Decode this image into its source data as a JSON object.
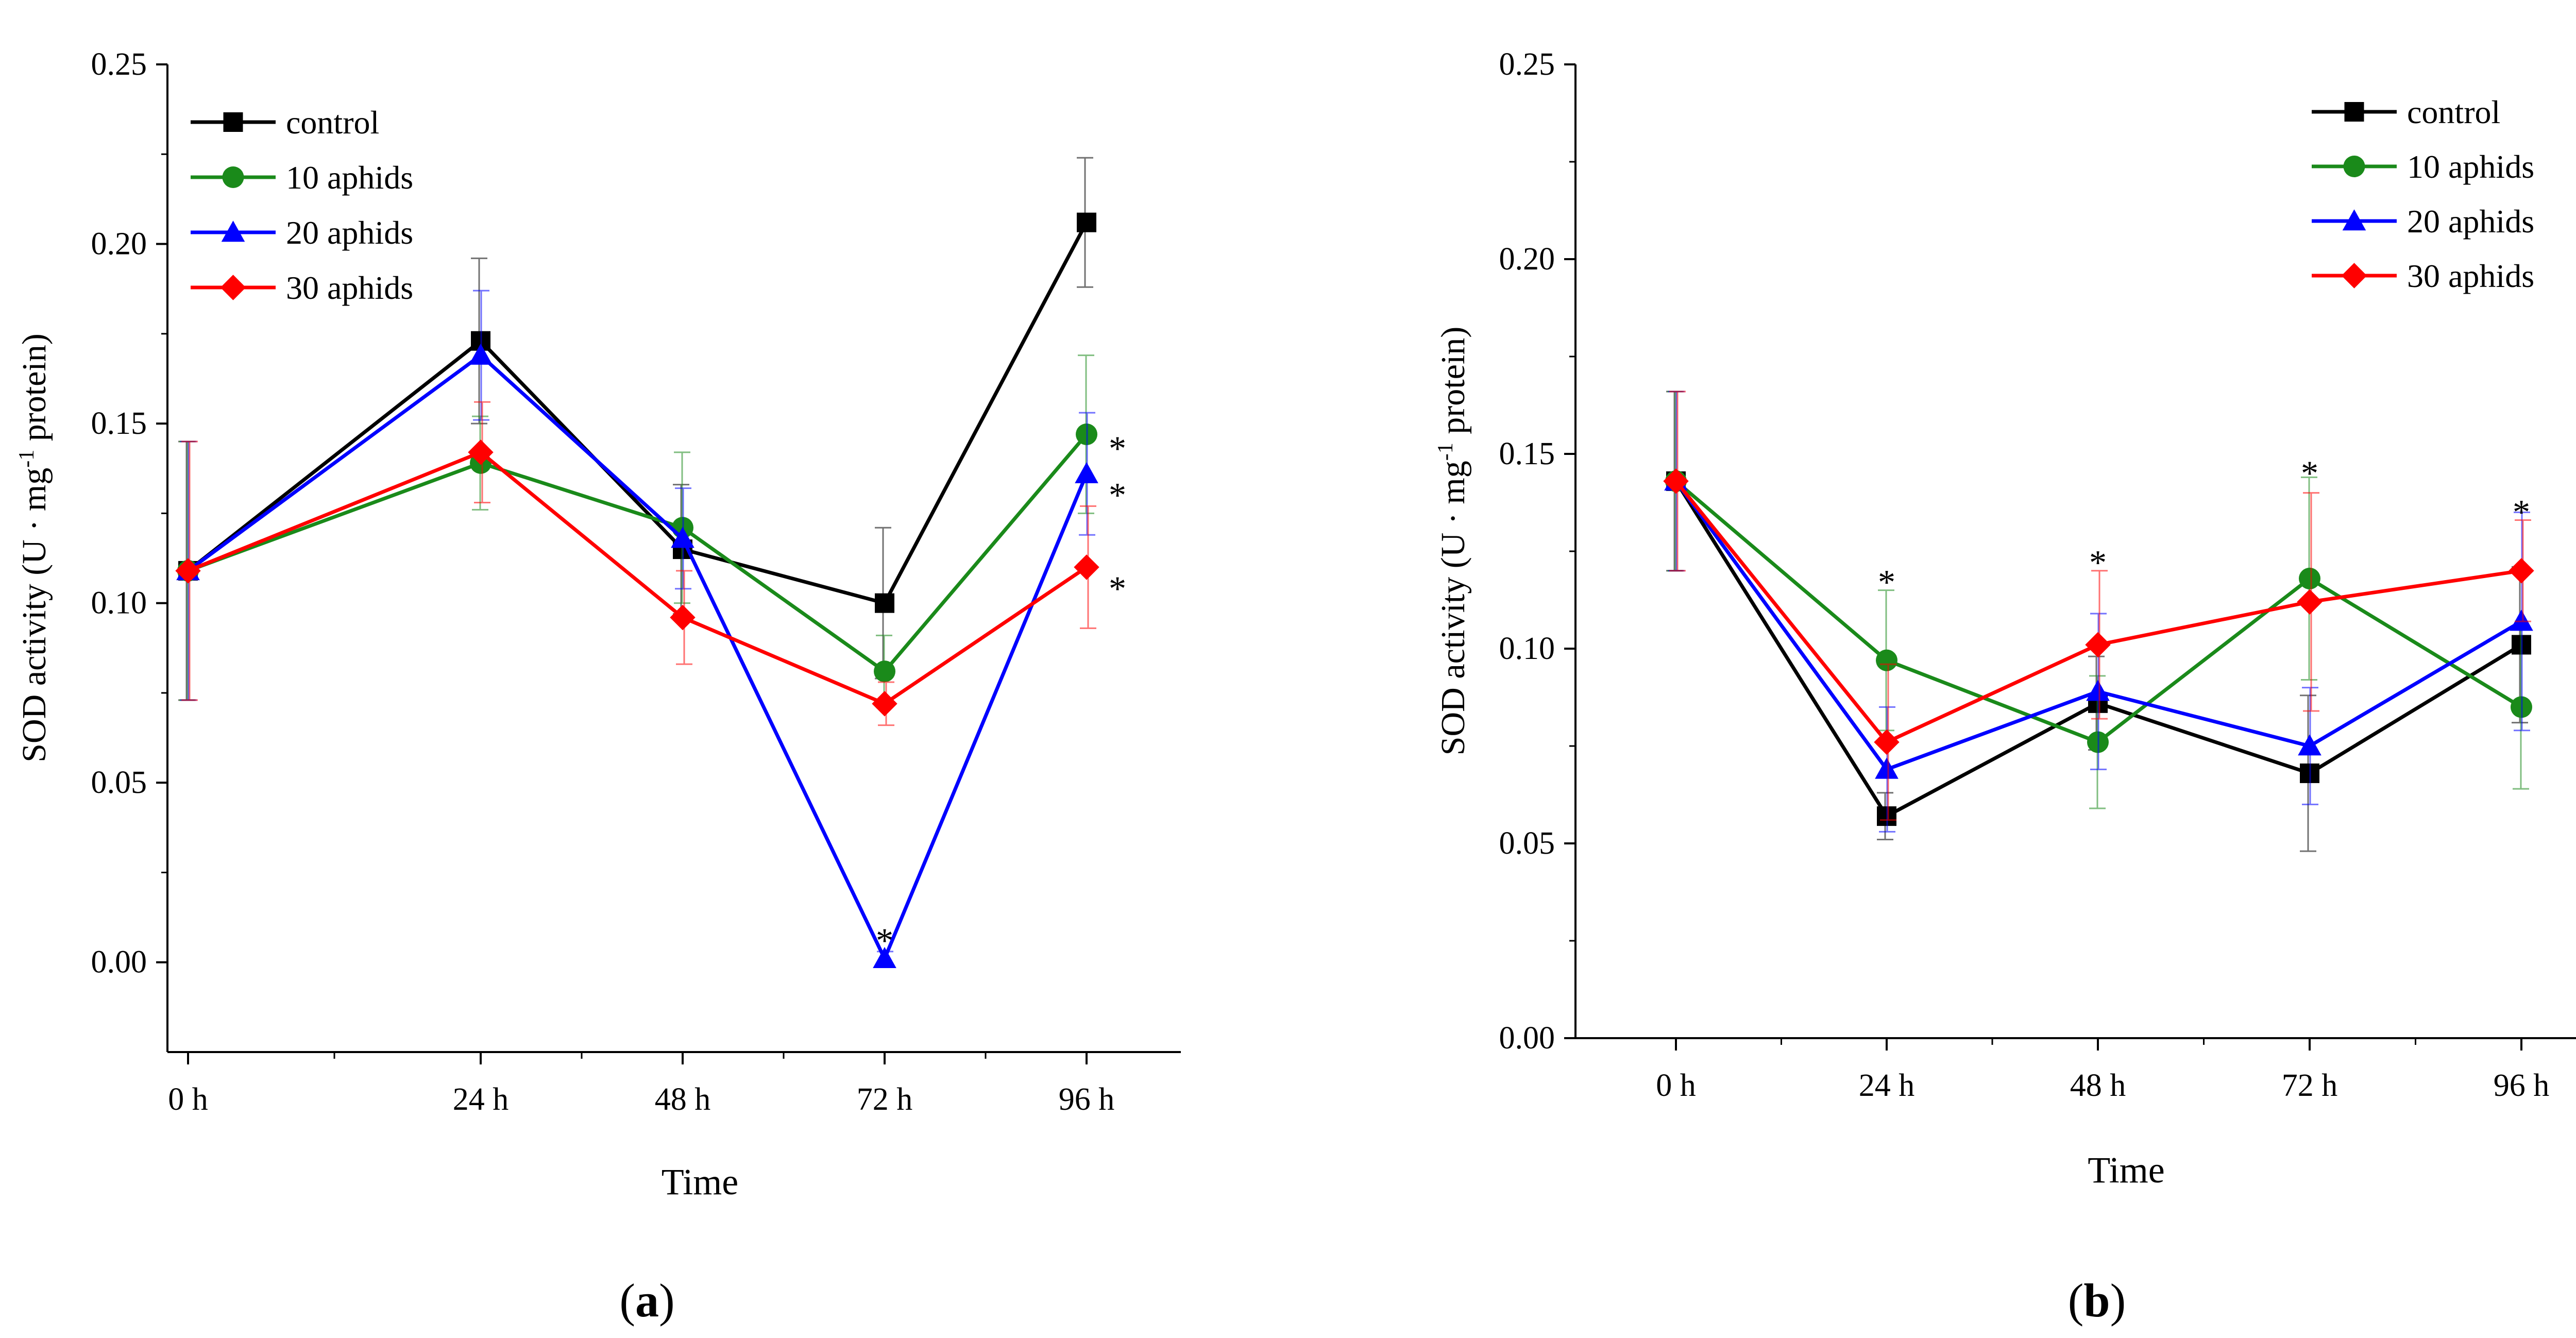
{
  "chart_data": [
    {
      "panel_label": "a",
      "type": "line",
      "xlabel": "Time",
      "ylabel_parts": [
        "SOD activity (U · mg",
        "-1",
        " protein)"
      ],
      "categories": [
        "0 h",
        "24 h",
        "48 h",
        "72 h",
        "96 h"
      ],
      "ylim": [
        -0.025,
        0.25
      ],
      "yticks": [
        0.0,
        0.05,
        0.1,
        0.15,
        0.2,
        0.25
      ],
      "ytick_labels": [
        "0.00",
        "0.05",
        "0.10",
        "0.15",
        "0.20",
        "0.25"
      ],
      "legend_position": "top-left",
      "series": [
        {
          "name": "control",
          "color": "#000000",
          "marker": "square",
          "values": [
            0.109,
            0.173,
            0.115,
            0.1,
            0.206
          ],
          "errors": [
            0.036,
            0.023,
            0.018,
            0.021,
            0.018
          ]
        },
        {
          "name": "10 aphids",
          "color": "#1a8a1a",
          "marker": "circle",
          "values": [
            0.109,
            0.139,
            0.121,
            0.081,
            0.147
          ],
          "errors": [
            0.036,
            0.013,
            0.021,
            0.01,
            0.022
          ]
        },
        {
          "name": "20 aphids",
          "color": "#0000ff",
          "marker": "triangle",
          "values": [
            0.109,
            0.169,
            0.118,
            0.001,
            0.136
          ],
          "errors": [
            0.036,
            0.018,
            0.014,
            0.002,
            0.017
          ]
        },
        {
          "name": "30 aphids",
          "color": "#ff0000",
          "marker": "diamond",
          "values": [
            0.109,
            0.142,
            0.096,
            0.072,
            0.11
          ],
          "errors": [
            0.036,
            0.014,
            0.013,
            0.006,
            0.017
          ]
        }
      ],
      "annotations": [
        {
          "text": "*",
          "category": "72 h",
          "y": 0.006
        },
        {
          "text": "*",
          "category": "96 h",
          "y": 0.143,
          "side": "right"
        },
        {
          "text": "*",
          "category": "96 h",
          "y": 0.13,
          "side": "right"
        },
        {
          "text": "*",
          "category": "96 h",
          "y": 0.104,
          "side": "right"
        }
      ]
    },
    {
      "panel_label": "b",
      "type": "line",
      "xlabel": "Time",
      "ylabel_parts": [
        "SOD activity (U · mg",
        "-1",
        " protein)"
      ],
      "categories": [
        "0 h",
        "24 h",
        "48 h",
        "72 h",
        "96 h"
      ],
      "ylim": [
        0,
        0.25
      ],
      "yticks": [
        0.0,
        0.05,
        0.1,
        0.15,
        0.2,
        0.25
      ],
      "ytick_labels": [
        "0.00",
        "0.05",
        "0.10",
        "0.15",
        "0.20",
        "0.25"
      ],
      "legend_position": "top-right",
      "series": [
        {
          "name": "control",
          "color": "#000000",
          "marker": "square",
          "values": [
            0.143,
            0.057,
            0.086,
            0.068,
            0.101
          ],
          "errors": [
            0.023,
            0.006,
            0.012,
            0.02,
            0.02
          ]
        },
        {
          "name": "10 aphids",
          "color": "#1a8a1a",
          "marker": "circle",
          "values": [
            0.143,
            0.097,
            0.076,
            0.118,
            0.085
          ],
          "errors": [
            0.023,
            0.018,
            0.017,
            0.026,
            0.021
          ]
        },
        {
          "name": "20 aphids",
          "color": "#0000ff",
          "marker": "triangle",
          "values": [
            0.143,
            0.069,
            0.089,
            0.075,
            0.107
          ],
          "errors": [
            0.023,
            0.016,
            0.02,
            0.015,
            0.028
          ]
        },
        {
          "name": "30 aphids",
          "color": "#ff0000",
          "marker": "diamond",
          "values": [
            0.143,
            0.076,
            0.101,
            0.112,
            0.12
          ],
          "errors": [
            0.023,
            0.02,
            0.019,
            0.028,
            0.013
          ]
        }
      ],
      "annotations": [
        {
          "text": "*",
          "category": "24 h",
          "y": 0.117
        },
        {
          "text": "*",
          "category": "48 h",
          "y": 0.122
        },
        {
          "text": "*",
          "category": "72 h",
          "y": 0.145
        },
        {
          "text": "*",
          "category": "96 h",
          "y": 0.135
        }
      ]
    }
  ]
}
